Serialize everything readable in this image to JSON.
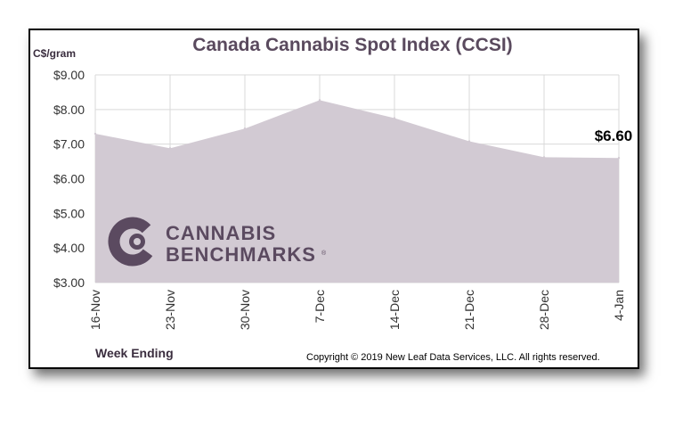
{
  "chart_data": {
    "type": "area",
    "title": "Canada Cannabis Spot Index (CCSI)",
    "ylabel": "C$/gram",
    "xlabel": "Week Ending",
    "categories": [
      "16-Nov",
      "23-Nov",
      "30-Nov",
      "7-Dec",
      "14-Dec",
      "21-Dec",
      "28-Dec",
      "4-Jan"
    ],
    "values": [
      7.3,
      6.88,
      7.45,
      8.27,
      7.75,
      7.08,
      6.62,
      6.6
    ],
    "ylim": [
      3.0,
      9.0
    ],
    "yticks": [
      "$3.00",
      "$4.00",
      "$5.00",
      "$6.00",
      "$7.00",
      "$8.00",
      "$9.00"
    ],
    "last_value_label": "$6.60",
    "grid": true,
    "area_color": "#d2cad3",
    "grid_color": "#d9d9d9"
  },
  "logo": {
    "line1": "CANNABIS",
    "line2": "BENCHMARKS",
    "mark": "®",
    "color": "#5b4a60"
  },
  "copyright": "Copyright © 2019 New Leaf Data Services, LLC.  All rights reserved."
}
